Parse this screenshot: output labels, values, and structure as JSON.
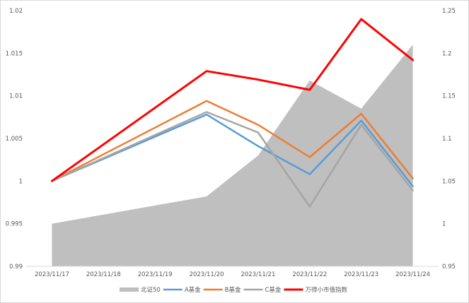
{
  "chart_data": {
    "type": "line",
    "categories": [
      "2023/11/17",
      "2023/11/18",
      "2023/11/19",
      "2023/11/20",
      "2023/11/21",
      "2023/11/22",
      "2023/11/23",
      "2023/11/24"
    ],
    "y_left": {
      "min": 0.99,
      "max": 1.02,
      "ticks": [
        "0.99",
        "0.995",
        "1",
        "1.005",
        "1.01",
        "1.015",
        "1.02"
      ]
    },
    "y_right": {
      "min": 0.95,
      "max": 1.25,
      "ticks": [
        "0.95",
        "1",
        "1.05",
        "1.1",
        "1.15",
        "1.2",
        "1.25"
      ]
    },
    "gridlines": false,
    "legend_position": "bottom",
    "series": [
      {
        "name": "北证50",
        "type": "area",
        "axis": "right",
        "color": "#bfbfbf",
        "x": [
          "2023/11/17",
          "2023/11/20",
          "2023/11/21",
          "2023/11/22",
          "2023/11/23",
          "2023/11/24"
        ],
        "values": [
          1.0,
          1.032,
          1.08,
          1.168,
          1.135,
          1.21
        ]
      },
      {
        "name": "A基金",
        "type": "line",
        "axis": "left",
        "color": "#5b9bd5",
        "x": [
          "2023/11/17",
          "2023/11/20",
          "2023/11/21",
          "2023/11/22",
          "2023/11/23",
          "2023/11/24"
        ],
        "values": [
          1.0,
          1.0078,
          1.0041,
          1.0008,
          1.0071,
          0.9994
        ]
      },
      {
        "name": "B基金",
        "type": "line",
        "axis": "left",
        "color": "#ed7d31",
        "x": [
          "2023/11/17",
          "2023/11/20",
          "2023/11/21",
          "2023/11/22",
          "2023/11/23",
          "2023/11/24"
        ],
        "values": [
          1.0,
          1.0094,
          1.0066,
          1.0028,
          1.0079,
          1.0003
        ]
      },
      {
        "name": "C基金",
        "type": "line",
        "axis": "left",
        "color": "#a5a5a5",
        "x": [
          "2023/11/17",
          "2023/11/20",
          "2023/11/21",
          "2023/11/22",
          "2023/11/23",
          "2023/11/24"
        ],
        "values": [
          1.0,
          1.0081,
          1.0057,
          0.997,
          1.0066,
          0.9989
        ]
      },
      {
        "name": "万得小市值指数",
        "type": "line",
        "axis": "left",
        "color": "#ff0000",
        "x": [
          "2023/11/17",
          "2023/11/20",
          "2023/11/21",
          "2023/11/22",
          "2023/11/23",
          "2023/11/24"
        ],
        "values": [
          1.0,
          1.0129,
          1.0119,
          1.0107,
          1.019,
          1.0142
        ]
      }
    ]
  }
}
